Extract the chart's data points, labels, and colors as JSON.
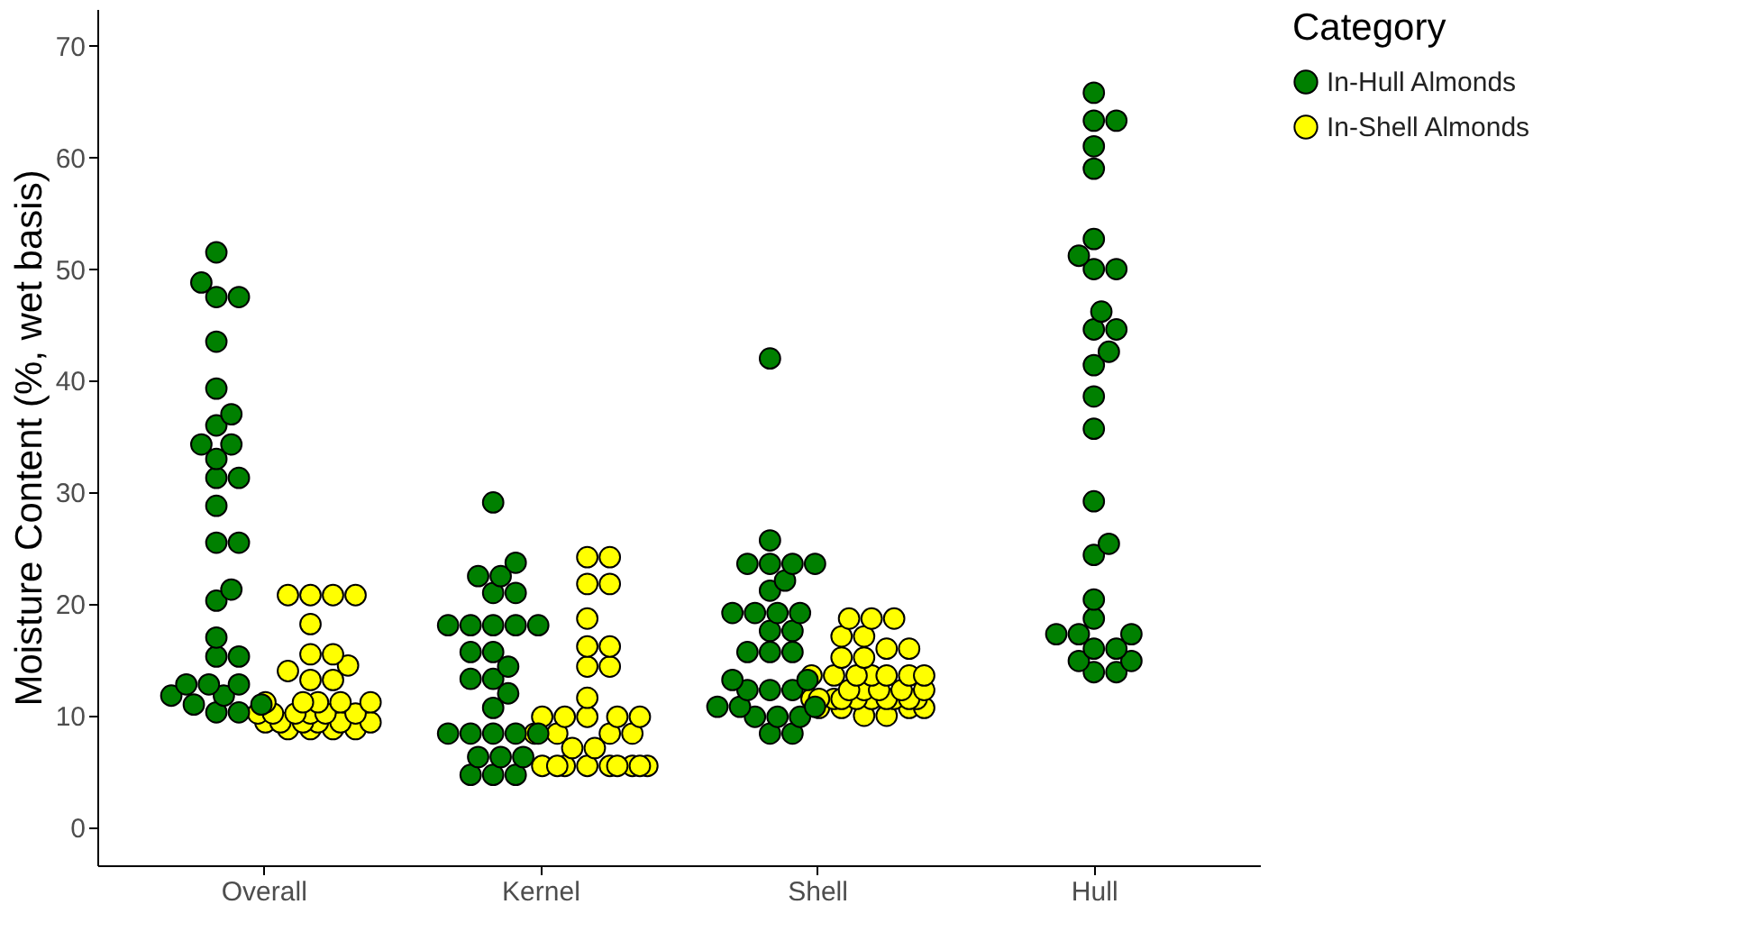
{
  "chart_data": {
    "type": "scatter",
    "ylabel": "Moisture Content (%, wet basis)",
    "legend_title": "Category",
    "categories": [
      "Overall",
      "Kernel",
      "Shell",
      "Hull"
    ],
    "series": [
      {
        "name": "In-Hull Almonds",
        "color": "#008000",
        "x": [
          "Overall",
          "Overall",
          "Overall",
          "Overall",
          "Overall",
          "Overall",
          "Overall",
          "Overall",
          "Overall",
          "Overall",
          "Overall",
          "Overall",
          "Overall",
          "Overall",
          "Overall",
          "Overall",
          "Overall",
          "Overall",
          "Overall",
          "Overall",
          "Overall",
          "Overall",
          "Overall",
          "Overall",
          "Overall",
          "Overall",
          "Overall",
          "Overall",
          "Overall",
          "Overall",
          "Kernel",
          "Kernel",
          "Kernel",
          "Kernel",
          "Kernel",
          "Kernel",
          "Kernel",
          "Kernel",
          "Kernel",
          "Kernel",
          "Kernel",
          "Kernel",
          "Kernel",
          "Kernel",
          "Kernel",
          "Kernel",
          "Kernel",
          "Kernel",
          "Kernel",
          "Kernel",
          "Kernel",
          "Kernel",
          "Kernel",
          "Kernel",
          "Kernel",
          "Kernel",
          "Kernel",
          "Kernel",
          "Kernel",
          "Shell",
          "Shell",
          "Shell",
          "Shell",
          "Shell",
          "Shell",
          "Shell",
          "Shell",
          "Shell",
          "Shell",
          "Shell",
          "Shell",
          "Shell",
          "Shell",
          "Shell",
          "Shell",
          "Shell",
          "Shell",
          "Shell",
          "Shell",
          "Shell",
          "Shell",
          "Shell",
          "Shell",
          "Shell",
          "Shell",
          "Shell",
          "Shell",
          "Shell",
          "Shell",
          "Hull",
          "Hull",
          "Hull",
          "Hull",
          "Hull",
          "Hull",
          "Hull",
          "Hull",
          "Hull",
          "Hull",
          "Hull",
          "Hull",
          "Hull",
          "Hull",
          "Hull",
          "Hull",
          "Hull",
          "Hull",
          "Hull",
          "Hull",
          "Hull",
          "Hull",
          "Hull",
          "Hull",
          "Hull",
          "Hull",
          "Hull",
          "Hull",
          "Hull",
          "Hull"
        ],
        "values": [
          51.5,
          48.8,
          47.5,
          47.5,
          43.5,
          39.3,
          37,
          36,
          34.3,
          34.3,
          33,
          31.3,
          31.3,
          28.8,
          25.5,
          25.5,
          21.3,
          20.3,
          17,
          15.3,
          15.3,
          12.8,
          12.8,
          12.8,
          11.8,
          11.8,
          11,
          11,
          10.3,
          10.3,
          29.1,
          23.7,
          22.5,
          22.5,
          21,
          21,
          18.1,
          18.1,
          18.1,
          18.1,
          18.1,
          15.7,
          15.7,
          14.4,
          13.3,
          13.3,
          12,
          10.7,
          8.4,
          8.4,
          8.4,
          8.4,
          8.4,
          6.3,
          6.3,
          6.3,
          4.7,
          4.7,
          4.7,
          42,
          25.7,
          23.6,
          23.6,
          23.6,
          23.6,
          22.1,
          21.2,
          19.2,
          19.2,
          19.2,
          19.2,
          17.6,
          17.6,
          15.7,
          15.7,
          15.7,
          13.2,
          13.2,
          12.3,
          12.3,
          12.3,
          10.8,
          10.8,
          10.8,
          9.9,
          9.9,
          9.9,
          8.4,
          8.4,
          65.8,
          63.3,
          63.3,
          61,
          59,
          52.7,
          51.2,
          50,
          50,
          46.2,
          44.6,
          44.6,
          42.6,
          41.4,
          38.6,
          35.7,
          29.2,
          25.4,
          24.4,
          20.4,
          18.7,
          17.3,
          17.3,
          17.3,
          16,
          16,
          14.9,
          14.9,
          13.9,
          13.9
        ]
      },
      {
        "name": "In-Shell Almonds",
        "color": "#ffff00",
        "x": [
          "Overall",
          "Overall",
          "Overall",
          "Overall",
          "Overall",
          "Overall",
          "Overall",
          "Overall",
          "Overall",
          "Overall",
          "Overall",
          "Overall",
          "Overall",
          "Overall",
          "Overall",
          "Overall",
          "Overall",
          "Overall",
          "Overall",
          "Overall",
          "Overall",
          "Overall",
          "Overall",
          "Overall",
          "Overall",
          "Overall",
          "Overall",
          "Overall",
          "Overall",
          "Overall",
          "Overall",
          "Overall",
          "Kernel",
          "Kernel",
          "Kernel",
          "Kernel",
          "Kernel",
          "Kernel",
          "Kernel",
          "Kernel",
          "Kernel",
          "Kernel",
          "Kernel",
          "Kernel",
          "Kernel",
          "Kernel",
          "Kernel",
          "Kernel",
          "Kernel",
          "Kernel",
          "Kernel",
          "Kernel",
          "Kernel",
          "Kernel",
          "Kernel",
          "Kernel",
          "Kernel",
          "Kernel",
          "Kernel",
          "Kernel",
          "Kernel",
          "Kernel",
          "Shell",
          "Shell",
          "Shell",
          "Shell",
          "Shell",
          "Shell",
          "Shell",
          "Shell",
          "Shell",
          "Shell",
          "Shell",
          "Shell",
          "Shell",
          "Shell",
          "Shell",
          "Shell",
          "Shell",
          "Shell",
          "Shell",
          "Shell",
          "Shell",
          "Shell",
          "Shell",
          "Shell",
          "Shell",
          "Shell",
          "Shell",
          "Shell",
          "Shell",
          "Shell",
          "Shell",
          "Shell",
          "Shell",
          "Shell",
          "Shell",
          "Shell",
          "Shell"
        ],
        "values": [
          20.8,
          20.8,
          20.8,
          20.8,
          18.2,
          15.5,
          15.5,
          14.5,
          14,
          13.2,
          13.2,
          11.2,
          11.2,
          11.2,
          11.2,
          11.2,
          10.2,
          10.2,
          10.2,
          10.2,
          10.2,
          10.2,
          9.4,
          9.4,
          9.4,
          9.4,
          9.4,
          9.4,
          8.8,
          8.8,
          8.8,
          8.8,
          24.2,
          24.2,
          21.8,
          21.8,
          18.7,
          16.2,
          16.2,
          14.4,
          14.4,
          11.6,
          9.9,
          9.9,
          9.9,
          9.9,
          9.9,
          8.4,
          8.4,
          8.4,
          8.4,
          7.1,
          7.1,
          5.5,
          5.5,
          5.5,
          5.5,
          5.5,
          5.5,
          5.5,
          5.5,
          5.5,
          18.7,
          18.7,
          18.7,
          17.1,
          17.1,
          16,
          16,
          15.2,
          15.2,
          13.6,
          13.6,
          13.6,
          13.6,
          13.6,
          13.6,
          13.6,
          12.3,
          12.3,
          12.3,
          12.3,
          12.3,
          11.5,
          11.5,
          11.5,
          11.5,
          11.5,
          11.5,
          11.5,
          11.5,
          11.5,
          11.5,
          10.7,
          10.7,
          10.7,
          10.7,
          10,
          10
        ]
      }
    ],
    "ylim": [
      -3.4,
      73.3
    ],
    "yticks": [
      0,
      10,
      20,
      30,
      40,
      50,
      60,
      70
    ],
    "grid": false,
    "legend": "right",
    "marker": "circle"
  }
}
